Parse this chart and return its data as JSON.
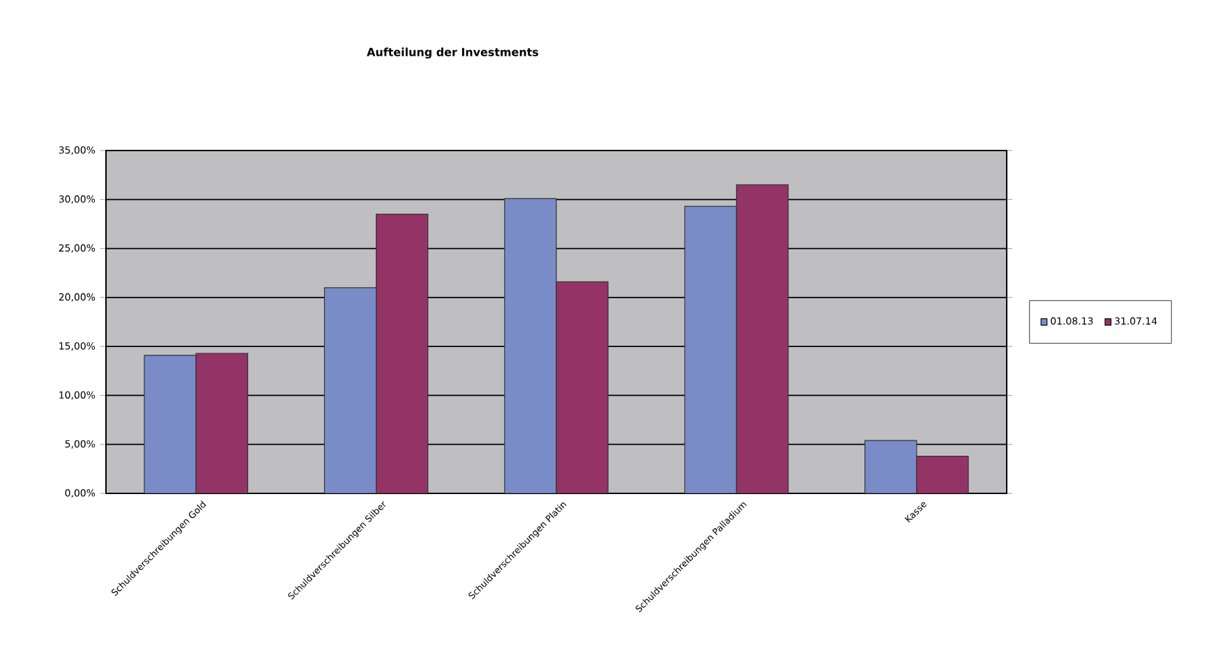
{
  "chart_data": {
    "type": "bar",
    "title": "Aufteilung der Investments",
    "categories": [
      "Schuldverschreibungen Gold",
      "Schuldverschreibungen Silber",
      "Schuldverschreibungen Platin",
      "Schuldverschreibungen Palladium",
      "Kasse"
    ],
    "series": [
      {
        "name": "01.08.13",
        "color": "#7a8cc8",
        "values": [
          14.1,
          21.0,
          30.1,
          29.3,
          5.4
        ]
      },
      {
        "name": "31.07.14",
        "color": "#933366",
        "values": [
          14.3,
          28.5,
          21.6,
          31.5,
          3.8
        ]
      }
    ],
    "ylim": [
      0,
      35
    ],
    "yticks": [
      {
        "value": 0,
        "label": "0,00%"
      },
      {
        "value": 5,
        "label": "5,00%"
      },
      {
        "value": 10,
        "label": "10,00%"
      },
      {
        "value": 15,
        "label": "15,00%"
      },
      {
        "value": 20,
        "label": "20,00%"
      },
      {
        "value": 25,
        "label": "25,00%"
      },
      {
        "value": 30,
        "label": "30,00%"
      },
      {
        "value": 35,
        "label": "35,00%"
      }
    ],
    "grid": "y",
    "legend": "right"
  }
}
